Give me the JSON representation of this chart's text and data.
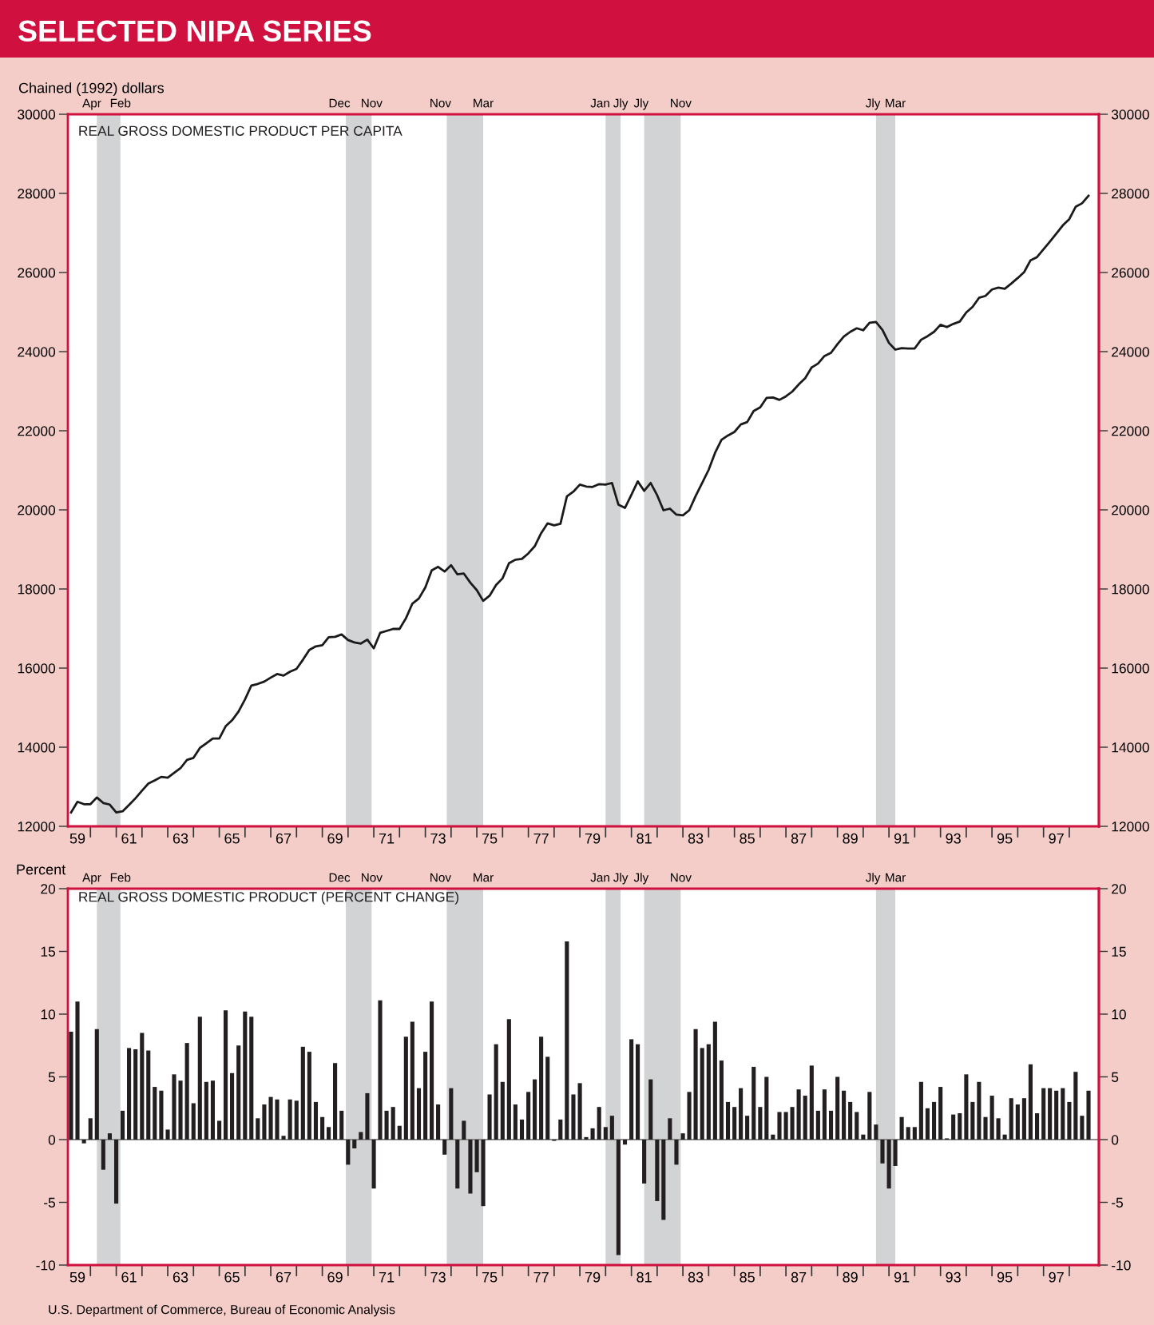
{
  "chart_data": [
    {
      "type": "line",
      "title": "SELECTED NIPA SERIES",
      "subtitle": "REAL GROSS DOMESTIC PRODUCT PER CAPITA",
      "ylabel": "Chained (1992) dollars",
      "x": [
        "1959-04-01",
        "1959-07-01",
        "1959-10-01",
        "1960-01-01",
        "1960-04-01",
        "1960-07-01",
        "1960-10-01",
        "1961-01-01",
        "1961-04-01",
        "1961-07-01",
        "1961-10-01",
        "1962-01-01",
        "1962-04-01",
        "1962-07-01",
        "1962-10-01",
        "1963-01-01",
        "1963-04-01",
        "1963-07-01",
        "1963-10-01",
        "1964-01-01",
        "1964-04-01",
        "1964-07-01",
        "1964-10-01",
        "1965-01-01",
        "1965-04-01",
        "1965-07-01",
        "1965-10-01",
        "1966-01-01",
        "1966-04-01",
        "1966-07-01",
        "1966-10-01",
        "1967-01-01",
        "1967-04-01",
        "1967-07-01",
        "1967-10-01",
        "1968-01-01",
        "1968-04-01",
        "1968-07-01",
        "1968-10-01",
        "1969-01-01",
        "1969-04-01",
        "1969-07-01",
        "1969-10-01",
        "1970-01-01",
        "1970-04-01",
        "1970-07-01",
        "1970-10-01",
        "1971-01-01",
        "1971-04-01",
        "1971-07-01",
        "1971-10-01",
        "1972-01-01",
        "1972-04-01",
        "1972-07-01",
        "1972-10-01",
        "1973-01-01",
        "1973-04-01",
        "1973-07-01",
        "1973-10-01",
        "1974-01-01",
        "1974-04-01",
        "1974-07-01",
        "1974-10-01",
        "1975-01-01",
        "1975-04-01",
        "1975-07-01",
        "1975-10-01",
        "1976-01-01",
        "1976-04-01",
        "1976-07-01",
        "1976-10-01",
        "1977-01-01",
        "1977-04-01",
        "1977-07-01",
        "1977-10-01",
        "1978-01-01",
        "1978-04-01",
        "1978-07-01",
        "1978-10-01",
        "1979-01-01",
        "1979-04-01",
        "1979-07-01",
        "1979-10-01",
        "1980-01-01",
        "1980-04-01",
        "1980-07-01",
        "1980-10-01",
        "1981-01-01",
        "1981-04-01",
        "1981-07-01",
        "1981-10-01",
        "1982-01-01",
        "1982-04-01",
        "1982-07-01",
        "1982-10-01",
        "1983-01-01",
        "1983-04-01",
        "1983-07-01",
        "1983-10-01",
        "1984-01-01",
        "1984-04-01",
        "1984-07-01",
        "1984-10-01",
        "1985-01-01",
        "1985-04-01",
        "1985-07-01",
        "1985-10-01",
        "1986-01-01",
        "1986-04-01",
        "1986-07-01",
        "1986-10-01",
        "1987-01-01",
        "1987-04-01",
        "1987-07-01",
        "1987-10-01",
        "1988-01-01",
        "1988-04-01",
        "1988-07-01",
        "1988-10-01",
        "1989-01-01",
        "1989-04-01",
        "1989-07-01",
        "1989-10-01",
        "1990-01-01",
        "1990-04-01",
        "1990-07-01",
        "1990-10-01",
        "1991-01-01",
        "1991-04-01",
        "1991-07-01",
        "1991-10-01",
        "1992-01-01",
        "1992-04-01",
        "1992-07-01",
        "1992-10-01",
        "1993-01-01",
        "1993-04-01",
        "1993-07-01",
        "1993-10-01",
        "1994-01-01",
        "1994-04-01",
        "1994-07-01",
        "1994-10-01",
        "1995-01-01",
        "1995-04-01",
        "1995-07-01",
        "1995-10-01",
        "1996-01-01",
        "1996-04-01",
        "1996-07-01",
        "1996-10-01",
        "1997-01-01",
        "1997-04-01",
        "1997-07-01",
        "1997-10-01",
        "1998-01-01",
        "1998-04-01",
        "1998-07-01",
        "1998-10-01"
      ],
      "series": [
        {
          "color": "#1a1a1a",
          "values": [
            12350,
            12620,
            12560,
            12560,
            12730,
            12590,
            12550,
            12350,
            12380,
            12540,
            12710,
            12900,
            13080,
            13160,
            13250,
            13230,
            13350,
            13470,
            13680,
            13730,
            13980,
            14100,
            14220,
            14220,
            14530,
            14680,
            14900,
            15210,
            15560,
            15600,
            15660,
            15760,
            15850,
            15810,
            15910,
            15980,
            16210,
            16460,
            16550,
            16580,
            16780,
            16790,
            16850,
            16710,
            16650,
            16620,
            16720,
            16500,
            16890,
            16940,
            16990,
            16990,
            17260,
            17630,
            17760,
            18040,
            18470,
            18560,
            18440,
            18600,
            18370,
            18390,
            18160,
            17970,
            17700,
            17830,
            18100,
            18270,
            18650,
            18740,
            18760,
            18900,
            19080,
            19410,
            19660,
            19610,
            19650,
            20340,
            20460,
            20640,
            20590,
            20580,
            20650,
            20640,
            20680,
            20130,
            20050,
            20380,
            20720,
            20480,
            20680,
            20370,
            19990,
            20030,
            19880,
            19860,
            19990,
            20350,
            20680,
            21010,
            21440,
            21770,
            21880,
            21970,
            22160,
            22220,
            22500,
            22590,
            22830,
            22840,
            22780,
            22870,
            22990,
            23170,
            23330,
            23600,
            23700,
            23890,
            23970,
            24190,
            24380,
            24500,
            24590,
            24540,
            24730,
            24750,
            24550,
            24220,
            24050,
            24090,
            24080,
            24080,
            24300,
            24390,
            24500,
            24680,
            24620,
            24700,
            24760,
            24990,
            25130,
            25360,
            25410,
            25570,
            25620,
            25590,
            25720,
            25860,
            26010,
            26310,
            26390,
            26590,
            26780,
            26980,
            27190,
            27350,
            27660,
            27750,
            27940
          ]
        }
      ],
      "xlim": [
        "1959-02-15",
        "1999-02-25"
      ],
      "xticks": [
        {
          "value": "1959-07-01",
          "label": "59"
        },
        {
          "value": "1960-01-01",
          "label": null
        },
        {
          "value": "1961-01-01",
          "label": null
        },
        {
          "value": "1961-07-01",
          "label": "61"
        },
        {
          "value": "1962-01-01",
          "label": null
        },
        {
          "value": "1963-01-01",
          "label": null
        },
        {
          "value": "1963-07-01",
          "label": "63"
        },
        {
          "value": "1964-01-01",
          "label": null
        },
        {
          "value": "1965-01-01",
          "label": null
        },
        {
          "value": "1965-07-01",
          "label": "65"
        },
        {
          "value": "1966-01-01",
          "label": null
        },
        {
          "value": "1967-01-01",
          "label": null
        },
        {
          "value": "1967-07-01",
          "label": "67"
        },
        {
          "value": "1968-01-01",
          "label": null
        },
        {
          "value": "1969-01-01",
          "label": null
        },
        {
          "value": "1969-07-01",
          "label": "69"
        },
        {
          "value": "1970-01-01",
          "label": null
        },
        {
          "value": "1971-01-01",
          "label": null
        },
        {
          "value": "1971-07-01",
          "label": "71"
        },
        {
          "value": "1972-01-01",
          "label": null
        },
        {
          "value": "1973-01-01",
          "label": null
        },
        {
          "value": "1973-07-01",
          "label": "73"
        },
        {
          "value": "1974-01-01",
          "label": null
        },
        {
          "value": "1975-01-01",
          "label": null
        },
        {
          "value": "1975-07-01",
          "label": "75"
        },
        {
          "value": "1976-01-01",
          "label": null
        },
        {
          "value": "1977-01-01",
          "label": null
        },
        {
          "value": "1977-07-01",
          "label": "77"
        },
        {
          "value": "1978-01-01",
          "label": null
        },
        {
          "value": "1979-01-01",
          "label": null
        },
        {
          "value": "1979-07-01",
          "label": "79"
        },
        {
          "value": "1980-01-01",
          "label": null
        },
        {
          "value": "1981-01-01",
          "label": null
        },
        {
          "value": "1981-07-01",
          "label": "81"
        },
        {
          "value": "1982-01-01",
          "label": null
        },
        {
          "value": "1983-01-01",
          "label": null
        },
        {
          "value": "1983-07-01",
          "label": "83"
        },
        {
          "value": "1984-01-01",
          "label": null
        },
        {
          "value": "1985-01-01",
          "label": null
        },
        {
          "value": "1985-07-01",
          "label": "85"
        },
        {
          "value": "1986-01-01",
          "label": null
        },
        {
          "value": "1987-01-01",
          "label": null
        },
        {
          "value": "1987-07-01",
          "label": "87"
        },
        {
          "value": "1988-01-01",
          "label": null
        },
        {
          "value": "1989-01-01",
          "label": null
        },
        {
          "value": "1989-07-01",
          "label": "89"
        },
        {
          "value": "1990-01-01",
          "label": null
        },
        {
          "value": "1991-01-01",
          "label": null
        },
        {
          "value": "1991-07-01",
          "label": "91"
        },
        {
          "value": "1992-01-01",
          "label": null
        },
        {
          "value": "1993-01-01",
          "label": null
        },
        {
          "value": "1993-07-01",
          "label": "93"
        },
        {
          "value": "1994-01-01",
          "label": null
        },
        {
          "value": "1995-01-01",
          "label": null
        },
        {
          "value": "1995-07-01",
          "label": "95"
        },
        {
          "value": "1996-01-01",
          "label": null
        },
        {
          "value": "1997-01-01",
          "label": null
        },
        {
          "value": "1997-07-01",
          "label": "97"
        },
        {
          "value": "1998-01-01",
          "label": null
        }
      ],
      "ylim": [
        12000,
        30000
      ],
      "yticks": [
        12000,
        14000,
        16000,
        18000,
        20000,
        22000,
        24000,
        26000,
        28000,
        30000
      ],
      "y2lim": [
        12000,
        30000
      ],
      "y2ticks": [
        12000,
        14000,
        16000,
        18000,
        20000,
        22000,
        24000,
        26000,
        28000,
        30000
      ],
      "bands": [
        {
          "axis": "x",
          "from": "1960-04-01",
          "to": "1961-03-01",
          "color": "#d1d3d4"
        },
        {
          "axis": "x",
          "from": "1969-12-01",
          "to": "1970-12-01",
          "color": "#d1d3d4"
        },
        {
          "axis": "x",
          "from": "1973-11-01",
          "to": "1975-04-01",
          "color": "#d1d3d4"
        },
        {
          "axis": "x",
          "from": "1980-01-01",
          "to": "1980-08-01",
          "color": "#d1d3d4"
        },
        {
          "axis": "x",
          "from": "1981-07-01",
          "to": "1982-12-01",
          "color": "#d1d3d4"
        },
        {
          "axis": "x",
          "from": "1990-07-01",
          "to": "1991-04-01",
          "color": "#d1d3d4"
        }
      ],
      "annotations": [
        {
          "text": "Apr",
          "x": "1960-04-01",
          "y": 30000
        },
        {
          "text": "Feb",
          "x": "1961-03-01",
          "y": 30000
        },
        {
          "text": "Dec",
          "x": "1969-12-01",
          "y": 30000
        },
        {
          "text": "Nov",
          "x": "1970-12-01",
          "y": 30000
        },
        {
          "text": "Nov",
          "x": "1973-11-01",
          "y": 30000
        },
        {
          "text": "Mar",
          "x": "1975-04-01",
          "y": 30000
        },
        {
          "text": "Jan",
          "x": "1980-01-01",
          "y": 30000
        },
        {
          "text": "Jly",
          "x": "1980-08-01",
          "y": 30000
        },
        {
          "text": "Jly",
          "x": "1981-07-01",
          "y": 30000
        },
        {
          "text": "Nov",
          "x": "1982-12-01",
          "y": 30000
        },
        {
          "text": "Jly",
          "x": "1990-07-01",
          "y": 30000
        },
        {
          "text": "Mar",
          "x": "1991-04-01",
          "y": 30000
        }
      ]
    },
    {
      "type": "bar",
      "subtitle": "REAL GROSS DOMESTIC PRODUCT (PERCENT CHANGE)",
      "ylabel": "Percent",
      "x": [
        "1959-04-01",
        "1959-07-01",
        "1959-10-01",
        "1960-01-01",
        "1960-04-01",
        "1960-07-01",
        "1960-10-01",
        "1961-01-01",
        "1961-04-01",
        "1961-07-01",
        "1961-10-01",
        "1962-01-01",
        "1962-04-01",
        "1962-07-01",
        "1962-10-01",
        "1963-01-01",
        "1963-04-01",
        "1963-07-01",
        "1963-10-01",
        "1964-01-01",
        "1964-04-01",
        "1964-07-01",
        "1964-10-01",
        "1965-01-01",
        "1965-04-01",
        "1965-07-01",
        "1965-10-01",
        "1966-01-01",
        "1966-04-01",
        "1966-07-01",
        "1966-10-01",
        "1967-01-01",
        "1967-04-01",
        "1967-07-01",
        "1967-10-01",
        "1968-01-01",
        "1968-04-01",
        "1968-07-01",
        "1968-10-01",
        "1969-01-01",
        "1969-04-01",
        "1969-07-01",
        "1969-10-01",
        "1970-01-01",
        "1970-04-01",
        "1970-07-01",
        "1970-10-01",
        "1971-01-01",
        "1971-04-01",
        "1971-07-01",
        "1971-10-01",
        "1972-01-01",
        "1972-04-01",
        "1972-07-01",
        "1972-10-01",
        "1973-01-01",
        "1973-04-01",
        "1973-07-01",
        "1973-10-01",
        "1974-01-01",
        "1974-04-01",
        "1974-07-01",
        "1974-10-01",
        "1975-01-01",
        "1975-04-01",
        "1975-07-01",
        "1975-10-01",
        "1976-01-01",
        "1976-04-01",
        "1976-07-01",
        "1976-10-01",
        "1977-01-01",
        "1977-04-01",
        "1977-07-01",
        "1977-10-01",
        "1978-01-01",
        "1978-04-01",
        "1978-07-01",
        "1978-10-01",
        "1979-01-01",
        "1979-04-01",
        "1979-07-01",
        "1979-10-01",
        "1980-01-01",
        "1980-04-01",
        "1980-07-01",
        "1980-10-01",
        "1981-01-01",
        "1981-04-01",
        "1981-07-01",
        "1981-10-01",
        "1982-01-01",
        "1982-04-01",
        "1982-07-01",
        "1982-10-01",
        "1983-01-01",
        "1983-04-01",
        "1983-07-01",
        "1983-10-01",
        "1984-01-01",
        "1984-04-01",
        "1984-07-01",
        "1984-10-01",
        "1985-01-01",
        "1985-04-01",
        "1985-07-01",
        "1985-10-01",
        "1986-01-01",
        "1986-04-01",
        "1986-07-01",
        "1986-10-01",
        "1987-01-01",
        "1987-04-01",
        "1987-07-01",
        "1987-10-01",
        "1988-01-01",
        "1988-04-01",
        "1988-07-01",
        "1988-10-01",
        "1989-01-01",
        "1989-04-01",
        "1989-07-01",
        "1989-10-01",
        "1990-01-01",
        "1990-04-01",
        "1990-07-01",
        "1990-10-01",
        "1991-01-01",
        "1991-04-01",
        "1991-07-01",
        "1991-10-01",
        "1992-01-01",
        "1992-04-01",
        "1992-07-01",
        "1992-10-01",
        "1993-01-01",
        "1993-04-01",
        "1993-07-01",
        "1993-10-01",
        "1994-01-01",
        "1994-04-01",
        "1994-07-01",
        "1994-10-01",
        "1995-01-01",
        "1995-04-01",
        "1995-07-01",
        "1995-10-01",
        "1996-01-01",
        "1996-04-01",
        "1996-07-01",
        "1996-10-01",
        "1997-01-01",
        "1997-04-01",
        "1997-07-01",
        "1997-10-01",
        "1998-01-01",
        "1998-04-01",
        "1998-07-01",
        "1998-10-01"
      ],
      "series": [
        {
          "color": "#231f20",
          "values": [
            8.6,
            11.0,
            -0.3,
            1.7,
            8.8,
            -2.4,
            0.5,
            -5.1,
            2.3,
            7.3,
            7.2,
            8.5,
            7.1,
            4.2,
            3.9,
            0.8,
            5.2,
            4.7,
            7.7,
            2.9,
            9.8,
            4.6,
            4.7,
            1.5,
            10.3,
            5.3,
            7.5,
            10.2,
            9.8,
            1.7,
            2.8,
            3.4,
            3.2,
            0.3,
            3.2,
            3.1,
            7.4,
            7.0,
            3.0,
            1.8,
            1.0,
            6.1,
            2.3,
            -2.0,
            -0.7,
            0.6,
            3.7,
            -3.9,
            11.1,
            2.3,
            2.6,
            1.1,
            8.2,
            9.4,
            4.1,
            7.0,
            11.0,
            2.8,
            -1.2,
            4.1,
            -3.9,
            1.5,
            -4.3,
            -2.6,
            -5.3,
            3.6,
            7.6,
            4.6,
            9.6,
            2.8,
            1.6,
            3.8,
            4.8,
            8.2,
            6.6,
            -0.1,
            1.6,
            15.8,
            3.6,
            4.5,
            0.2,
            0.9,
            2.6,
            1.0,
            1.9,
            -9.2,
            -0.4,
            8.0,
            7.6,
            -3.5,
            4.8,
            -4.9,
            -6.4,
            1.7,
            -2.0,
            0.5,
            3.8,
            8.8,
            7.3,
            7.6,
            9.4,
            6.3,
            3.0,
            2.6,
            4.1,
            1.9,
            5.8,
            2.6,
            5.0,
            0.4,
            2.2,
            2.2,
            2.6,
            4.0,
            3.5,
            5.9,
            2.3,
            4.0,
            2.3,
            5.0,
            3.9,
            3.0,
            2.2,
            0.4,
            3.8,
            1.2,
            -1.9,
            -3.9,
            -2.1,
            1.8,
            1.0,
            1.0,
            4.6,
            2.5,
            3.0,
            4.2,
            0.1,
            2.0,
            2.1,
            5.2,
            3.0,
            4.6,
            1.8,
            3.5,
            1.7,
            0.4,
            3.3,
            2.8,
            3.3,
            6.0,
            2.1,
            4.1,
            4.1,
            3.9,
            4.1,
            3.0,
            5.4,
            1.9,
            3.9
          ]
        }
      ],
      "xlim": [
        "1959-02-15",
        "1999-02-25"
      ],
      "xticks": [
        {
          "value": "1959-07-01",
          "label": "59"
        },
        {
          "value": "1960-01-01",
          "label": null
        },
        {
          "value": "1961-01-01",
          "label": null
        },
        {
          "value": "1961-07-01",
          "label": "61"
        },
        {
          "value": "1962-01-01",
          "label": null
        },
        {
          "value": "1963-01-01",
          "label": null
        },
        {
          "value": "1963-07-01",
          "label": "63"
        },
        {
          "value": "1964-01-01",
          "label": null
        },
        {
          "value": "1965-01-01",
          "label": null
        },
        {
          "value": "1965-07-01",
          "label": "65"
        },
        {
          "value": "1966-01-01",
          "label": null
        },
        {
          "value": "1967-01-01",
          "label": null
        },
        {
          "value": "1967-07-01",
          "label": "67"
        },
        {
          "value": "1968-01-01",
          "label": null
        },
        {
          "value": "1969-01-01",
          "label": null
        },
        {
          "value": "1969-07-01",
          "label": "69"
        },
        {
          "value": "1970-01-01",
          "label": null
        },
        {
          "value": "1971-01-01",
          "label": null
        },
        {
          "value": "1971-07-01",
          "label": "71"
        },
        {
          "value": "1972-01-01",
          "label": null
        },
        {
          "value": "1973-01-01",
          "label": null
        },
        {
          "value": "1973-07-01",
          "label": "73"
        },
        {
          "value": "1974-01-01",
          "label": null
        },
        {
          "value": "1975-01-01",
          "label": null
        },
        {
          "value": "1975-07-01",
          "label": "75"
        },
        {
          "value": "1976-01-01",
          "label": null
        },
        {
          "value": "1977-01-01",
          "label": null
        },
        {
          "value": "1977-07-01",
          "label": "77"
        },
        {
          "value": "1978-01-01",
          "label": null
        },
        {
          "value": "1979-01-01",
          "label": null
        },
        {
          "value": "1979-07-01",
          "label": "79"
        },
        {
          "value": "1980-01-01",
          "label": null
        },
        {
          "value": "1981-01-01",
          "label": null
        },
        {
          "value": "1981-07-01",
          "label": "81"
        },
        {
          "value": "1982-01-01",
          "label": null
        },
        {
          "value": "1983-01-01",
          "label": null
        },
        {
          "value": "1983-07-01",
          "label": "83"
        },
        {
          "value": "1984-01-01",
          "label": null
        },
        {
          "value": "1985-01-01",
          "label": null
        },
        {
          "value": "1985-07-01",
          "label": "85"
        },
        {
          "value": "1986-01-01",
          "label": null
        },
        {
          "value": "1987-01-01",
          "label": null
        },
        {
          "value": "1987-07-01",
          "label": "87"
        },
        {
          "value": "1988-01-01",
          "label": null
        },
        {
          "value": "1989-01-01",
          "label": null
        },
        {
          "value": "1989-07-01",
          "label": "89"
        },
        {
          "value": "1990-01-01",
          "label": null
        },
        {
          "value": "1991-01-01",
          "label": null
        },
        {
          "value": "1991-07-01",
          "label": "91"
        },
        {
          "value": "1992-01-01",
          "label": null
        },
        {
          "value": "1993-01-01",
          "label": null
        },
        {
          "value": "1993-07-01",
          "label": "93"
        },
        {
          "value": "1994-01-01",
          "label": null
        },
        {
          "value": "1995-01-01",
          "label": null
        },
        {
          "value": "1995-07-01",
          "label": "95"
        },
        {
          "value": "1996-01-01",
          "label": null
        },
        {
          "value": "1997-01-01",
          "label": null
        },
        {
          "value": "1997-07-01",
          "label": "97"
        },
        {
          "value": "1998-01-01",
          "label": null
        }
      ],
      "ylim": [
        -10,
        20
      ],
      "yticks": [
        -10,
        -5,
        0,
        5,
        10,
        15,
        20
      ],
      "y2lim": [
        -10,
        20
      ],
      "y2ticks": [
        -10,
        -5,
        0,
        5,
        10,
        15,
        20
      ],
      "ref_lines": [
        {
          "axis": "y",
          "value": 0,
          "color": "#8c8c8c"
        }
      ],
      "bands": [
        {
          "axis": "x",
          "from": "1960-04-01",
          "to": "1961-03-01",
          "color": "#d1d3d4"
        },
        {
          "axis": "x",
          "from": "1969-12-01",
          "to": "1970-12-01",
          "color": "#d1d3d4"
        },
        {
          "axis": "x",
          "from": "1973-11-01",
          "to": "1975-04-01",
          "color": "#d1d3d4"
        },
        {
          "axis": "x",
          "from": "1980-01-01",
          "to": "1980-08-01",
          "color": "#d1d3d4"
        },
        {
          "axis": "x",
          "from": "1981-07-01",
          "to": "1982-12-01",
          "color": "#d1d3d4"
        },
        {
          "axis": "x",
          "from": "1990-07-01",
          "to": "1991-04-01",
          "color": "#d1d3d4"
        }
      ],
      "annotations": [
        {
          "text": "Apr",
          "x": "1960-04-01",
          "y": 20
        },
        {
          "text": "Feb",
          "x": "1961-03-01",
          "y": 20
        },
        {
          "text": "Dec",
          "x": "1969-12-01",
          "y": 20
        },
        {
          "text": "Nov",
          "x": "1970-12-01",
          "y": 20
        },
        {
          "text": "Nov",
          "x": "1973-11-01",
          "y": 20
        },
        {
          "text": "Mar",
          "x": "1975-04-01",
          "y": 20
        },
        {
          "text": "Jan",
          "x": "1980-01-01",
          "y": 20
        },
        {
          "text": "Jly",
          "x": "1980-08-01",
          "y": 20
        },
        {
          "text": "Jly",
          "x": "1981-07-01",
          "y": 20
        },
        {
          "text": "Nov",
          "x": "1982-12-01",
          "y": 20
        },
        {
          "text": "Jly",
          "x": "1990-07-01",
          "y": 20
        },
        {
          "text": "Mar",
          "x": "1991-04-01",
          "y": 20
        },
        "U.S. Department of Commerce, Bureau of Economic Analysis"
      ]
    }
  ]
}
